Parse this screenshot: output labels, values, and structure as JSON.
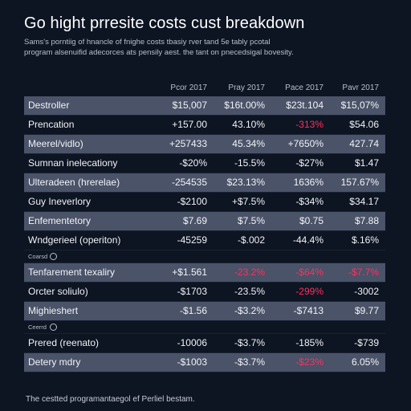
{
  "title": "Go hight prresite costs cust breakdown",
  "subtitle_lines": [
    "Sams's porntiig of hnancle of fnighe costs tbasiy rver tand 5e tably pcotal",
    "program alsenuifid adecorces ats pensily aest. the tant on pnecedsigal bovesity."
  ],
  "column_headers": [
    "Pcor 2017",
    "Pray 2017",
    "Pace 2017",
    "Pavr 2017"
  ],
  "rows": [
    {
      "label": "Destroller",
      "values": [
        "$15,007",
        "$16t.00%",
        "$23t.104",
        "$15,07%"
      ],
      "neg": [
        false,
        false,
        false,
        false
      ]
    },
    {
      "label": "Prencation",
      "values": [
        "+157.00",
        "43.10%",
        "-313%",
        "$54.06"
      ],
      "neg": [
        false,
        false,
        true,
        false
      ]
    },
    {
      "label": "Meerel/vidlo)",
      "values": [
        "+257433",
        "45.34%",
        "+7650%",
        "427.74"
      ],
      "neg": [
        false,
        false,
        false,
        false
      ]
    },
    {
      "label": "Sumnan inelecationy",
      "values": [
        "-$20%",
        "-15.5%",
        "-$27%",
        "$1.47"
      ],
      "neg": [
        false,
        false,
        false,
        false
      ]
    },
    {
      "label": "Ulteradeen (hrerelae)",
      "values": [
        "-254535",
        "$23.13%",
        "1636%",
        "157.67%"
      ],
      "neg": [
        false,
        false,
        false,
        false
      ]
    },
    {
      "label": "Guy Ineverlory",
      "values": [
        "-$2100",
        "+$7.5%",
        "-$34%",
        "$34.17"
      ],
      "neg": [
        false,
        false,
        false,
        false
      ]
    },
    {
      "label": "Enfementetory",
      "values": [
        "$7.69",
        "$7.5%",
        "$0.75",
        "$7.88"
      ],
      "neg": [
        false,
        false,
        false,
        false
      ]
    },
    {
      "label": "Wndgerieel (operiton)",
      "values": [
        "-45259",
        "-$.002",
        "-44.4%",
        "$.16%"
      ],
      "neg": [
        false,
        false,
        false,
        false
      ]
    },
    {
      "section": "Coarsd"
    },
    {
      "label": "Tenfarement texaliry",
      "values": [
        "+$1.561",
        "-23.2%",
        "-$64%",
        "-$7.7%"
      ],
      "neg": [
        false,
        true,
        true,
        true
      ]
    },
    {
      "label": "Orcter soliulo)",
      "values": [
        "-$1703",
        "-23.5%",
        "-299%",
        "-3002"
      ],
      "neg": [
        false,
        false,
        true,
        false
      ]
    },
    {
      "label": "Mighieshert",
      "values": [
        "-$1.56",
        "-$3.2%",
        "-$7413",
        "$9.77"
      ],
      "neg": [
        false,
        false,
        false,
        false
      ]
    },
    {
      "section": "Ceerrd"
    },
    {
      "label": "Prered (reenato)",
      "values": [
        "-10006",
        "-$3.7%",
        "-185%",
        "-$739"
      ],
      "neg": [
        false,
        false,
        false,
        false
      ]
    },
    {
      "label": "Detery mdry",
      "values": [
        "-$1003",
        "-$3.7%",
        "-$23%",
        "6.05%"
      ],
      "neg": [
        false,
        false,
        true,
        false
      ]
    }
  ],
  "footer": "The cestted programantaegol ef Perliel bestam.",
  "colors": {
    "background": "#0d1422",
    "row_shade": "#4a5368",
    "negative": "#ff2f5f",
    "text": "#f1f3f7"
  }
}
